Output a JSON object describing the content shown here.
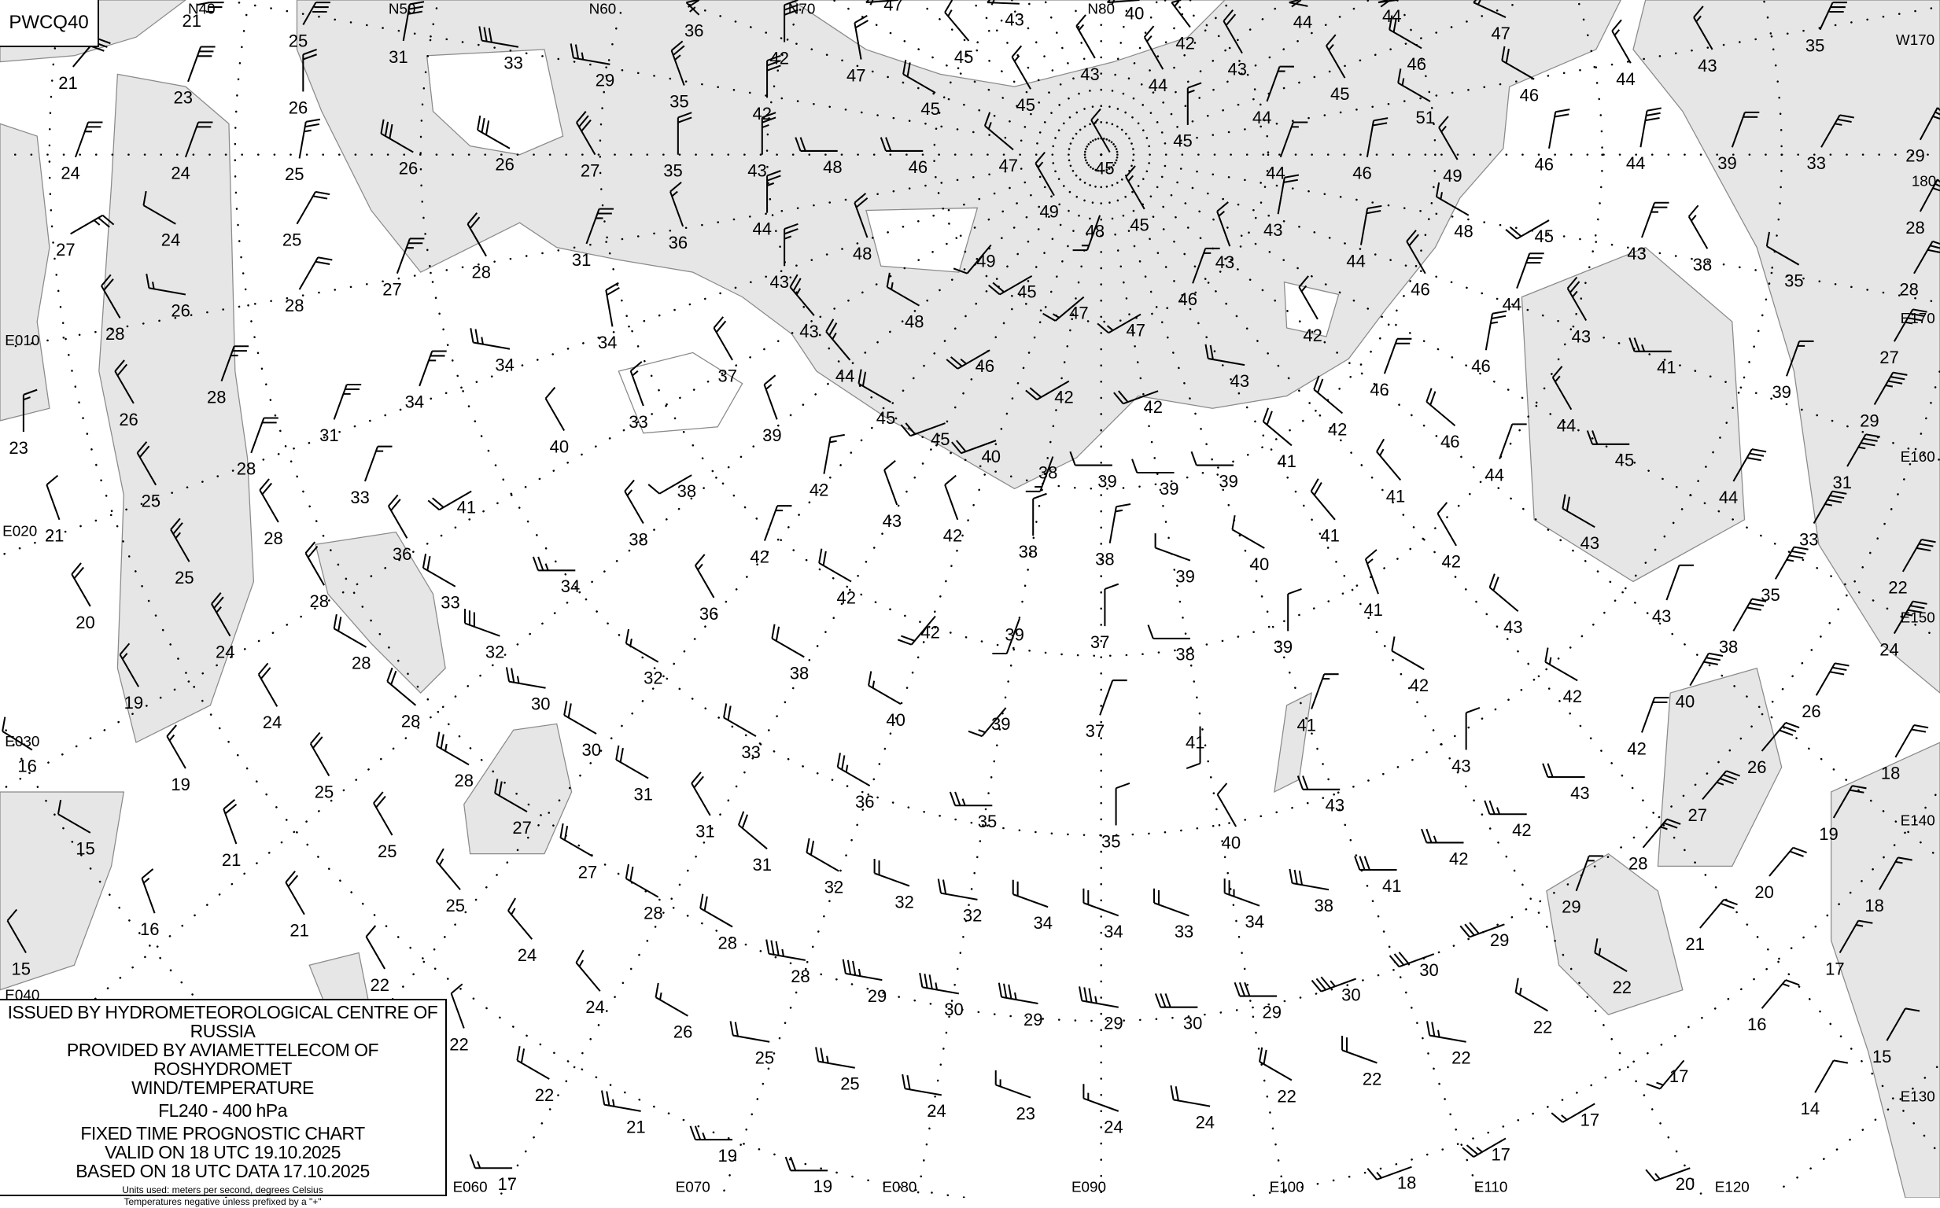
{
  "chart_code": "PWCQ40",
  "legend": {
    "line1": "ISSUED BY HYDROMETEOROLOGICAL CENTRE OF RUSSIA",
    "line2": "PROVIDED BY AVIAMETTELECOM OF ROSHYDROMET",
    "line3": "WIND/TEMPERATURE",
    "level": "FL240 - 400 hPa",
    "type": "FIXED TIME PROGNOSTIC CHART",
    "valid": "VALID ON 18 UTC 19.10.2025",
    "based": "BASED ON 18 UTC DATA 17.10.2025",
    "units": "Units used: meters per second, degrees Celsius",
    "note": "Temperatures negative unless prefixed by a \"+\""
  },
  "colors": {
    "sea": "#e6e6e6",
    "land": "#ffffff",
    "coast": "#8a8a8a",
    "ink": "#000000"
  },
  "grid_labels": [
    "N40",
    "N50",
    "N60",
    "N70",
    "N80",
    "W170",
    "180",
    "E170",
    "E160",
    "E150",
    "E140",
    "E130",
    "E120",
    "E110",
    "E100",
    "E090",
    "E080",
    "E070",
    "E060",
    "E040",
    "E030",
    "E020",
    "E010"
  ],
  "stations": [
    [
      "21",
      20,
      25
    ],
    [
      "25",
      20,
      30
    ],
    [
      "31",
      10,
      30
    ],
    [
      "33",
      280,
      30
    ],
    [
      "29",
      280,
      25
    ],
    [
      "36",
      340,
      25
    ],
    [
      "35",
      340,
      25
    ],
    [
      "42",
      0,
      30
    ],
    [
      "47",
      300,
      20
    ],
    [
      "43",
      300,
      20
    ],
    [
      "40",
      300,
      20
    ],
    [
      "44",
      330,
      20
    ],
    [
      "44",
      330,
      20
    ],
    [
      "47",
      300,
      20
    ],
    [
      "35",
      20,
      30
    ],
    [
      "43",
      330,
      15
    ],
    [
      "44",
      330,
      15
    ],
    [
      "46",
      300,
      20
    ],
    [
      "51",
      300,
      15
    ],
    [
      "46",
      300,
      20
    ],
    [
      "45",
      330,
      15
    ],
    [
      "42",
      330,
      15
    ],
    [
      "43",
      330,
      20
    ],
    [
      "44",
      330,
      15
    ],
    [
      "44",
      20,
      15
    ],
    [
      "43",
      330,
      15
    ],
    [
      "45",
      320,
      15
    ],
    [
      "45",
      300,
      20
    ],
    [
      "45",
      330,
      15
    ],
    [
      "47",
      350,
      20
    ],
    [
      "42",
      0,
      30
    ],
    [
      "21",
      40,
      30
    ],
    [
      "23",
      20,
      30
    ],
    [
      "26",
      0,
      20
    ],
    [
      "24",
      20,
      25
    ],
    [
      "24",
      20,
      20
    ],
    [
      "25",
      10,
      25
    ],
    [
      "26",
      300,
      30
    ],
    [
      "26",
      300,
      30
    ],
    [
      "27",
      330,
      30
    ],
    [
      "35",
      0,
      20
    ],
    [
      "43",
      0,
      25
    ],
    [
      "48",
      270,
      20
    ],
    [
      "46",
      270,
      20
    ],
    [
      "47",
      310,
      15
    ],
    [
      "45",
      330,
      15
    ],
    [
      "45",
      0,
      15
    ],
    [
      "44",
      20,
      15
    ],
    [
      "46",
      10,
      20
    ],
    [
      "49",
      330,
      15
    ],
    [
      "46",
      10,
      20
    ],
    [
      "44",
      10,
      30
    ],
    [
      "39",
      20,
      20
    ],
    [
      "33",
      30,
      25
    ],
    [
      "29",
      30,
      30
    ],
    [
      "27",
      60,
      25
    ],
    [
      "24",
      300,
      10
    ],
    [
      "25",
      30,
      20
    ],
    [
      "36",
      340,
      15
    ],
    [
      "44",
      0,
      25
    ],
    [
      "48",
      340,
      20
    ],
    [
      "49",
      330,
      15
    ],
    [
      "48",
      200,
      15
    ],
    [
      "49",
      220,
      10
    ],
    [
      "45",
      330,
      15
    ],
    [
      "43",
      340,
      15
    ],
    [
      "43",
      10,
      20
    ],
    [
      "44",
      10,
      20
    ],
    [
      "48",
      300,
      15
    ],
    [
      "45",
      240,
      20
    ],
    [
      "43",
      20,
      25
    ],
    [
      "38",
      330,
      15
    ],
    [
      "35",
      300,
      10
    ],
    [
      "28",
      30,
      30
    ],
    [
      "28",
      30,
      30
    ],
    [
      "26",
      280,
      15
    ],
    [
      "28",
      30,
      20
    ],
    [
      "27",
      20,
      25
    ],
    [
      "28",
      330,
      20
    ],
    [
      "31",
      20,
      25
    ],
    [
      "43",
      0,
      25
    ],
    [
      "48",
      300,
      15
    ],
    [
      "45",
      240,
      20
    ],
    [
      "47",
      230,
      15
    ],
    [
      "47",
      240,
      15
    ],
    [
      "46",
      20,
      15
    ],
    [
      "42",
      330,
      15
    ],
    [
      "46",
      330,
      20
    ],
    [
      "44",
      20,
      30
    ],
    [
      "43",
      330,
      25
    ],
    [
      "41",
      270,
      25
    ],
    [
      "27",
      30,
      35
    ],
    [
      "28",
      330,
      20
    ],
    [
      "28",
      20,
      25
    ],
    [
      "34",
      350,
      20
    ],
    [
      "34",
      280,
      25
    ],
    [
      "43",
      320,
      25
    ],
    [
      "46",
      240,
      25
    ],
    [
      "42",
      240,
      20
    ],
    [
      "42",
      250,
      20
    ],
    [
      "43",
      280,
      20
    ],
    [
      "46",
      20,
      20
    ],
    [
      "46",
      10,
      25
    ],
    [
      "39",
      20,
      15
    ],
    [
      "29",
      30,
      35
    ],
    [
      "26",
      330,
      20
    ],
    [
      "34",
      20,
      25
    ],
    [
      "33",
      340,
      15
    ],
    [
      "37",
      330,
      20
    ],
    [
      "39",
      340,
      15
    ],
    [
      "44",
      320,
      25
    ],
    [
      "45",
      300,
      20
    ],
    [
      "45",
      250,
      20
    ],
    [
      "42",
      310,
      20
    ],
    [
      "46",
      310,
      20
    ],
    [
      "44",
      330,
      15
    ],
    [
      "45",
      270,
      20
    ],
    [
      "31",
      30,
      35
    ],
    [
      "23",
      0,
      15
    ],
    [
      "31",
      20,
      25
    ],
    [
      "40",
      330,
      10
    ],
    [
      "40",
      250,
      20
    ],
    [
      "38",
      200,
      15
    ],
    [
      "39",
      270,
      10
    ],
    [
      "39",
      270,
      10
    ],
    [
      "39",
      270,
      10
    ],
    [
      "41",
      310,
      20
    ],
    [
      "41",
      320,
      15
    ],
    [
      "44",
      20,
      10
    ],
    [
      "44",
      30,
      30
    ],
    [
      "28",
      20,
      20
    ],
    [
      "33",
      20,
      15
    ],
    [
      "41",
      240,
      20
    ],
    [
      "38",
      240,
      10
    ],
    [
      "42",
      10,
      15
    ],
    [
      "43",
      340,
      10
    ],
    [
      "25",
      330,
      20
    ],
    [
      "21",
      340,
      10
    ],
    [
      "28",
      330,
      20
    ],
    [
      "36",
      330,
      20
    ],
    [
      "38",
      330,
      15
    ],
    [
      "42",
      20,
      15
    ],
    [
      "42",
      340,
      10
    ],
    [
      "38",
      0,
      10
    ],
    [
      "38",
      10,
      15
    ],
    [
      "39",
      290,
      10
    ],
    [
      "40",
      300,
      10
    ],
    [
      "41",
      320,
      20
    ],
    [
      "42",
      330,
      10
    ],
    [
      "43",
      300,
      20
    ],
    [
      "33",
      30,
      35
    ],
    [
      "22",
      30,
      30
    ],
    [
      "25",
      330,
      25
    ],
    [
      "33",
      300,
      20
    ],
    [
      "34",
      270,
      25
    ],
    [
      "36",
      330,
      15
    ],
    [
      "42",
      300,
      20
    ],
    [
      "42",
      220,
      20
    ],
    [
      "39",
      200,
      10
    ],
    [
      "37",
      0,
      10
    ],
    [
      "38",
      270,
      10
    ],
    [
      "39",
      0,
      10
    ],
    [
      "41",
      340,
      15
    ],
    [
      "43",
      310,
      20
    ],
    [
      "43",
      20,
      10
    ],
    [
      "35",
      30,
      35
    ],
    [
      "24",
      30,
      35
    ],
    [
      "20",
      330,
      20
    ],
    [
      "24",
      330,
      25
    ],
    [
      "28",
      330,
      20
    ],
    [
      "32",
      290,
      30
    ],
    [
      "32",
      300,
      15
    ],
    [
      "38",
      300,
      20
    ],
    [
      "28",
      300,
      20
    ],
    [
      "40",
      300,
      15
    ],
    [
      "39",
      220,
      15
    ],
    [
      "37",
      20,
      10
    ],
    [
      "41",
      180,
      10
    ],
    [
      "41",
      20,
      15
    ],
    [
      "42",
      300,
      10
    ],
    [
      "42",
      300,
      15
    ],
    [
      "38",
      30,
      30
    ],
    [
      "40",
      30,
      30
    ],
    [
      "26",
      30,
      30
    ],
    [
      "19",
      330,
      15
    ],
    [
      "24",
      330,
      20
    ],
    [
      "28",
      310,
      20
    ],
    [
      "30",
      280,
      25
    ],
    [
      "30",
      300,
      20
    ],
    [
      "33",
      300,
      20
    ],
    [
      "43",
      0,
      10
    ],
    [
      "42",
      20,
      20
    ],
    [
      "43",
      270,
      20
    ],
    [
      "26",
      40,
      30
    ],
    [
      "18",
      30,
      20
    ],
    [
      "16",
      300,
      10
    ],
    [
      "19",
      330,
      15
    ],
    [
      "25",
      330,
      20
    ],
    [
      "28",
      300,
      25
    ],
    [
      "31",
      300,
      20
    ],
    [
      "36",
      300,
      25
    ],
    [
      "35",
      270,
      25
    ],
    [
      "35",
      0,
      10
    ],
    [
      "40",
      330,
      10
    ],
    [
      "43",
      270,
      20
    ],
    [
      "42",
      270,
      25
    ],
    [
      "27",
      40,
      35
    ],
    [
      "19",
      30,
      20
    ],
    [
      "15",
      300,
      10
    ],
    [
      "21",
      340,
      20
    ],
    [
      "25",
      330,
      20
    ],
    [
      "27",
      300,
      20
    ],
    [
      "31",
      330,
      20
    ],
    [
      "31",
      310,
      20
    ],
    [
      "42",
      270,
      25
    ],
    [
      "28",
      40,
      25
    ],
    [
      "20",
      40,
      20
    ],
    [
      "27",
      300,
      20
    ],
    [
      "32",
      300,
      20
    ],
    [
      "32",
      290,
      20
    ],
    [
      "32",
      280,
      20
    ],
    [
      "34",
      290,
      20
    ],
    [
      "34",
      290,
      20
    ],
    [
      "33",
      290,
      20
    ],
    [
      "34",
      290,
      25
    ],
    [
      "38",
      280,
      30
    ],
    [
      "41",
      270,
      30
    ],
    [
      "29",
      20,
      15
    ],
    [
      "21",
      40,
      20
    ],
    [
      "18",
      30,
      15
    ],
    [
      "16",
      340,
      15
    ],
    [
      "21",
      330,
      20
    ],
    [
      "25",
      320,
      15
    ],
    [
      "28",
      300,
      20
    ],
    [
      "28",
      300,
      20
    ],
    [
      "24",
      320,
      15
    ],
    [
      "29",
      250,
      30
    ],
    [
      "30",
      250,
      30
    ],
    [
      "30",
      250,
      35
    ],
    [
      "17",
      30,
      15
    ],
    [
      "15",
      330,
      10
    ],
    [
      "22",
      330,
      10
    ],
    [
      "24",
      320,
      15
    ],
    [
      "28",
      280,
      35
    ],
    [
      "29",
      280,
      35
    ],
    [
      "30",
      280,
      35
    ],
    [
      "29",
      280,
      35
    ],
    [
      "29",
      280,
      35
    ],
    [
      "30",
      270,
      30
    ],
    [
      "29",
      270,
      30
    ],
    [
      "22",
      300,
      15
    ],
    [
      "22",
      300,
      15
    ],
    [
      "16",
      40,
      15
    ],
    [
      "22",
      340,
      10
    ],
    [
      "26",
      300,
      15
    ],
    [
      "25",
      280,
      20
    ],
    [
      "22",
      280,
      25
    ],
    [
      "22",
      290,
      20
    ],
    [
      "22",
      300,
      20
    ],
    [
      "15",
      30,
      10
    ],
    [
      "17",
      220,
      15
    ],
    [
      "22",
      300,
      20
    ],
    [
      "25",
      280,
      25
    ],
    [
      "24",
      280,
      20
    ],
    [
      "23",
      290,
      15
    ],
    [
      "24",
      290,
      15
    ],
    [
      "24",
      280,
      20
    ],
    [
      "17",
      240,
      15
    ],
    [
      "14",
      30,
      10
    ],
    [
      "21",
      280,
      25
    ],
    [
      "19",
      270,
      25
    ],
    [
      "17",
      270,
      15
    ],
    [
      "19",
      270,
      20
    ],
    [
      "18",
      250,
      15
    ],
    [
      "17",
      240,
      25
    ],
    [
      "20",
      250,
      15
    ]
  ]
}
